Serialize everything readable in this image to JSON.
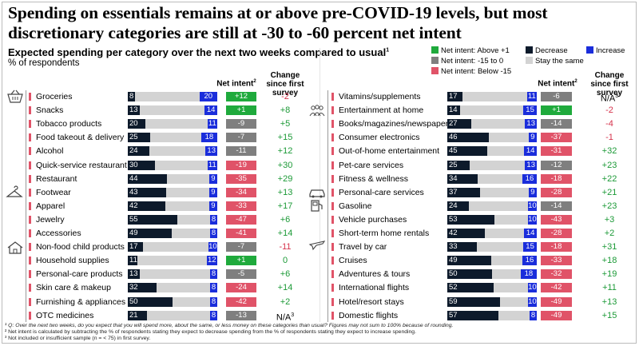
{
  "headline": "Spending on essentials remains at or above pre-COVID-19 levels, but most discretionary categories are still at -30 to -60 percent net intent",
  "subtitle": "Expected spending per category over the next two weeks compared to usual",
  "subtitle_sup": "1",
  "unit_label": "% of respondents",
  "col_net_intent": "Net intent",
  "col_net_intent_sup": "2",
  "col_change": "Change since first survey",
  "legend": {
    "net_above": "Net intent: Above +1",
    "net_mid": "Net intent: -15 to 0",
    "net_below": "Net intent: Below -15",
    "decrease": "Decrease",
    "same": "Stay the same",
    "increase": "Increase"
  },
  "colors": {
    "decrease": "#0d1a2b",
    "same": "#d3d3d3",
    "increase": "#1a2ddb",
    "net_above": "#1faa3c",
    "net_mid": "#7f7f7f",
    "net_below": "#e05368"
  },
  "icons": [
    "grocery-basket-icon",
    "clothes-hanger-icon",
    "house-icon",
    "group-of-people-icon",
    "plane-icon",
    "car-icon",
    "gas-pump-icon",
    "tent-icon"
  ],
  "chart_data": {
    "type": "bar",
    "stacked": true,
    "series_order": [
      "Decrease",
      "Stay the same",
      "Increase"
    ],
    "left": [
      {
        "category": "Groceries",
        "decrease": 8,
        "increase": 20,
        "net": "+12",
        "net_value": 12,
        "change": "-2"
      },
      {
        "category": "Snacks",
        "decrease": 13,
        "increase": 14,
        "net": "+1",
        "net_value": 1,
        "change": "+8"
      },
      {
        "category": "Tobacco products",
        "decrease": 20,
        "increase": 11,
        "net": "-9",
        "net_value": -9,
        "change": "+5"
      },
      {
        "category": "Food takeout & delivery",
        "decrease": 25,
        "increase": 18,
        "net": "-7",
        "net_value": -7,
        "change": "+15"
      },
      {
        "category": "Alcohol",
        "decrease": 24,
        "increase": 13,
        "net": "-11",
        "net_value": -11,
        "change": "+12"
      },
      {
        "category": "Quick-service restaurant",
        "decrease": 30,
        "increase": 11,
        "net": "-19",
        "net_value": -19,
        "change": "+30"
      },
      {
        "category": "Restaurant",
        "decrease": 44,
        "increase": 9,
        "net": "-35",
        "net_value": -35,
        "change": "+29"
      },
      {
        "category": "Footwear",
        "decrease": 43,
        "increase": 9,
        "net": "-34",
        "net_value": -34,
        "change": "+13"
      },
      {
        "category": "Apparel",
        "decrease": 42,
        "increase": 9,
        "net": "-33",
        "net_value": -33,
        "change": "+17"
      },
      {
        "category": "Jewelry",
        "decrease": 55,
        "increase": 8,
        "net": "-47",
        "net_value": -47,
        "change": "+6"
      },
      {
        "category": "Accessories",
        "decrease": 49,
        "increase": 8,
        "net": "-41",
        "net_value": -41,
        "change": "+14"
      },
      {
        "category": "Non-food child products",
        "decrease": 17,
        "increase": 10,
        "net": "-7",
        "net_value": -7,
        "change": "-11"
      },
      {
        "category": "Household supplies",
        "decrease": 11,
        "increase": 12,
        "net": "+1",
        "net_value": 1,
        "change": "0"
      },
      {
        "category": "Personal-care products",
        "decrease": 13,
        "increase": 8,
        "net": "-5",
        "net_value": -5,
        "change": "+6"
      },
      {
        "category": "Skin care & makeup",
        "decrease": 32,
        "increase": 8,
        "net": "-24",
        "net_value": -24,
        "change": "+14"
      },
      {
        "category": "Furnishing & appliances",
        "decrease": 50,
        "increase": 8,
        "net": "-42",
        "net_value": -42,
        "change": "+2"
      },
      {
        "category": "OTC medicines",
        "decrease": 21,
        "increase": 8,
        "net": "-13",
        "net_value": -13,
        "change": "N/A",
        "change_sup": "3"
      }
    ],
    "right": [
      {
        "category": "Vitamins/supplements",
        "decrease": 17,
        "increase": 11,
        "net": "-6",
        "net_value": -6,
        "change": "N/A",
        "change_sup": "3"
      },
      {
        "category": "Entertainment at home",
        "decrease": 14,
        "increase": 15,
        "net": "+1",
        "net_value": 1,
        "change": "-2"
      },
      {
        "category": "Books/magazines/newspapers",
        "decrease": 27,
        "increase": 13,
        "net": "-14",
        "net_value": -14,
        "change": "-4"
      },
      {
        "category": "Consumer electronics",
        "decrease": 46,
        "increase": 9,
        "net": "-37",
        "net_value": -37,
        "change": "-1"
      },
      {
        "category": "Out-of-home entertainment",
        "decrease": 45,
        "increase": 14,
        "net": "-31",
        "net_value": -31,
        "change": "+32"
      },
      {
        "category": "Pet-care services",
        "decrease": 25,
        "increase": 13,
        "net": "-12",
        "net_value": -12,
        "change": "+23"
      },
      {
        "category": "Fitness & wellness",
        "decrease": 34,
        "increase": 16,
        "net": "-18",
        "net_value": -18,
        "change": "+22"
      },
      {
        "category": "Personal-care services",
        "decrease": 37,
        "increase": 9,
        "net": "-28",
        "net_value": -28,
        "change": "+21"
      },
      {
        "category": "Gasoline",
        "decrease": 24,
        "increase": 10,
        "net": "-14",
        "net_value": -14,
        "change": "+23"
      },
      {
        "category": "Vehicle purchases",
        "decrease": 53,
        "increase": 10,
        "net": "-43",
        "net_value": -43,
        "change": "+3"
      },
      {
        "category": "Short-term home rentals",
        "decrease": 42,
        "increase": 14,
        "net": "-28",
        "net_value": -28,
        "change": "+2"
      },
      {
        "category": "Travel by car",
        "decrease": 33,
        "increase": 15,
        "net": "-18",
        "net_value": -18,
        "change": "+31"
      },
      {
        "category": "Cruises",
        "decrease": 49,
        "increase": 16,
        "net": "-33",
        "net_value": -33,
        "change": "+18"
      },
      {
        "category": "Adventures & tours",
        "decrease": 50,
        "increase": 18,
        "net": "-32",
        "net_value": -32,
        "change": "+19"
      },
      {
        "category": "International flights",
        "decrease": 52,
        "increase": 10,
        "net": "-42",
        "net_value": -42,
        "change": "+11"
      },
      {
        "category": "Hotel/resort stays",
        "decrease": 59,
        "increase": 10,
        "net": "-49",
        "net_value": -49,
        "change": "+13"
      },
      {
        "category": "Domestic flights",
        "decrease": 57,
        "increase": 8,
        "net": "-49",
        "net_value": -49,
        "change": "+15"
      }
    ]
  },
  "footnotes": {
    "f1": "¹ Q: Over the next two weeks, do you expect that you will spend more, about the same, or less money on these categories than usual? Figures may not sum to 100% because of rounding.",
    "f2": "² Net intent is calculated by subtracting the % of respondents stating they expect to decrease spending from the % of respondents stating they expect to increase spending.",
    "f3": "³ Not included or insufficient sample (n = < 75) in first survey."
  }
}
